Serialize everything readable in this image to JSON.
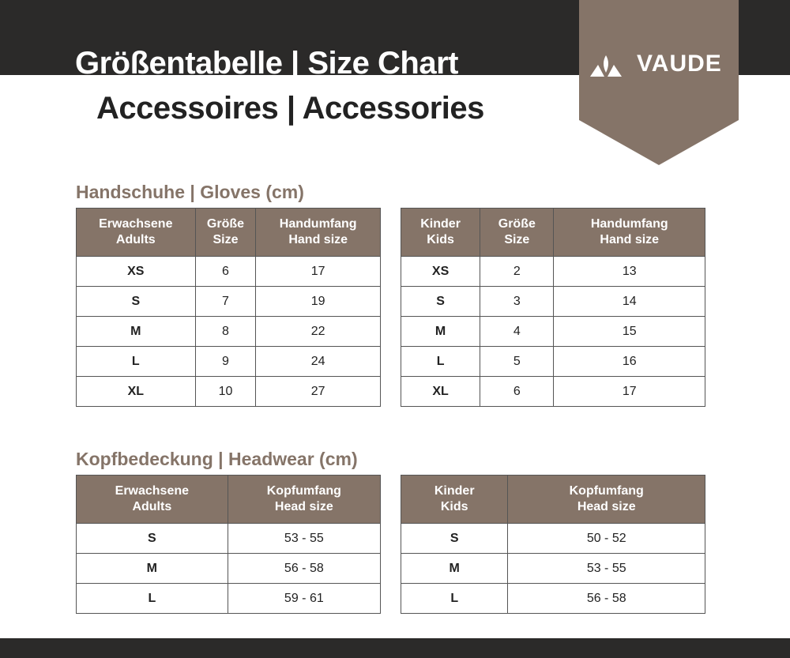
{
  "header": {
    "title": "Größentabelle | Size Chart",
    "subtitle": "Accessoires | Accessories",
    "brand": "VAUDE"
  },
  "colors": {
    "brand": "#857468",
    "dark": "#2b2a29"
  },
  "gloves": {
    "title": "Handschuhe | Gloves (cm)",
    "adults": {
      "headers": [
        [
          "Erwachsene",
          "Adults"
        ],
        [
          "Größe",
          "Size"
        ],
        [
          "Handumfang",
          "Hand size"
        ]
      ],
      "rows": [
        [
          "XS",
          "6",
          "17"
        ],
        [
          "S",
          "7",
          "19"
        ],
        [
          "M",
          "8",
          "22"
        ],
        [
          "L",
          "9",
          "24"
        ],
        [
          "XL",
          "10",
          "27"
        ]
      ]
    },
    "kids": {
      "headers": [
        [
          "Kinder",
          "Kids"
        ],
        [
          "Größe",
          "Size"
        ],
        [
          "Handumfang",
          "Hand size"
        ]
      ],
      "rows": [
        [
          "XS",
          "2",
          "13"
        ],
        [
          "S",
          "3",
          "14"
        ],
        [
          "M",
          "4",
          "15"
        ],
        [
          "L",
          "5",
          "16"
        ],
        [
          "XL",
          "6",
          "17"
        ]
      ]
    }
  },
  "headwear": {
    "title": "Kopfbedeckung | Headwear (cm)",
    "adults": {
      "headers": [
        [
          "Erwachsene",
          "Adults"
        ],
        [
          "Kopfumfang",
          "Head size"
        ]
      ],
      "rows": [
        [
          "S",
          "53 - 55"
        ],
        [
          "M",
          "56 - 58"
        ],
        [
          "L",
          "59 - 61"
        ]
      ]
    },
    "kids": {
      "headers": [
        [
          "Kinder",
          "Kids"
        ],
        [
          "Kopfumfang",
          "Head size"
        ]
      ],
      "rows": [
        [
          "S",
          "50 - 52"
        ],
        [
          "M",
          "53 - 55"
        ],
        [
          "L",
          "56 - 58"
        ]
      ]
    }
  }
}
